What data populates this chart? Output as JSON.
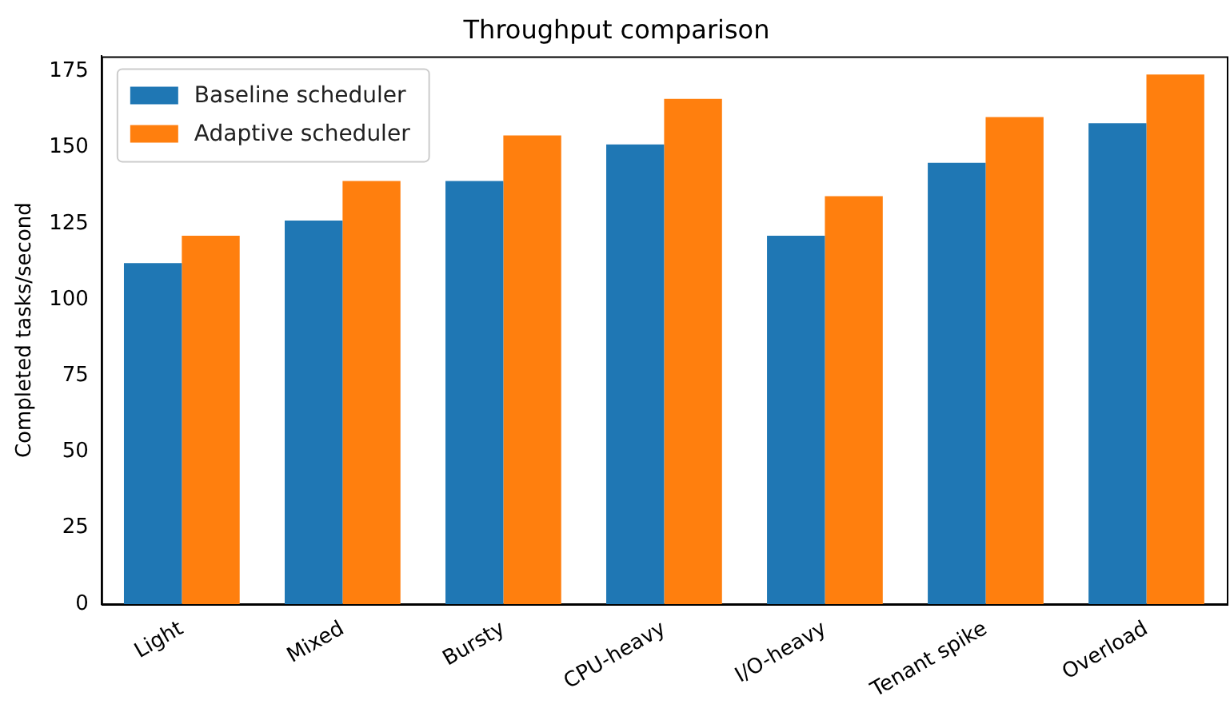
{
  "chart_data": {
    "type": "bar",
    "title": "Throughput comparison",
    "ylabel": "Completed tasks/second",
    "categories": [
      "Light",
      "Mixed",
      "Bursty",
      "CPU-heavy",
      "I/O-heavy",
      "Tenant spike",
      "Overload"
    ],
    "series": [
      {
        "name": "Baseline scheduler",
        "color": "#1f77b4",
        "values": [
          112,
          126,
          139,
          151,
          121,
          145,
          158
        ]
      },
      {
        "name": "Adaptive scheduler",
        "color": "#ff7f0e",
        "values": [
          121,
          139,
          154,
          166,
          134,
          160,
          174
        ]
      }
    ],
    "ylim": [
      0,
      180
    ],
    "yticks": [
      0,
      25,
      50,
      75,
      100,
      125,
      150,
      175
    ],
    "grid": false,
    "legend": "top left"
  }
}
